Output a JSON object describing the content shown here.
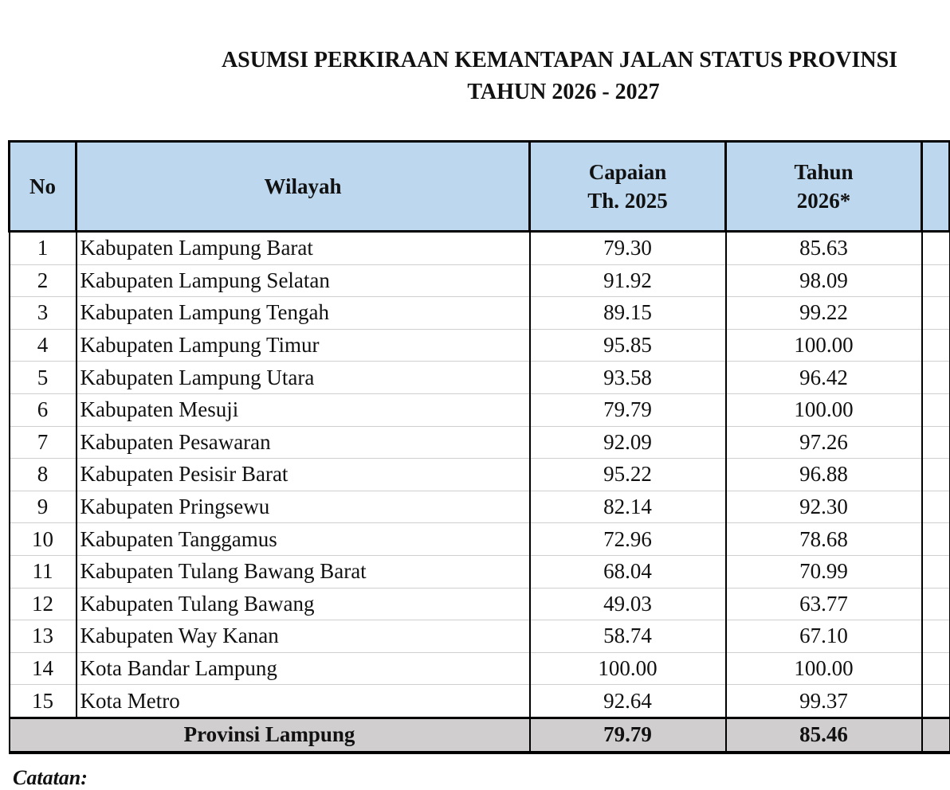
{
  "title": {
    "line1": "ASUMSI PERKIRAAN KEMANTAPAN JALAN STATUS PROVINSI",
    "line2": "TAHUN 2026 - 2027"
  },
  "table": {
    "headers": {
      "no": "No",
      "wilayah": "Wilayah",
      "capaian": "Capaian\nTh. 2025",
      "tahun2026": "Tahun\n2026*"
    },
    "rows": [
      {
        "no": "1",
        "wilayah": "Kabupaten Lampung Barat",
        "capaian": "79.30",
        "tahun2026": "85.63"
      },
      {
        "no": "2",
        "wilayah": "Kabupaten Lampung Selatan",
        "capaian": "91.92",
        "tahun2026": "98.09"
      },
      {
        "no": "3",
        "wilayah": "Kabupaten Lampung Tengah",
        "capaian": "89.15",
        "tahun2026": "99.22"
      },
      {
        "no": "4",
        "wilayah": "Kabupaten Lampung Timur",
        "capaian": "95.85",
        "tahun2026": "100.00"
      },
      {
        "no": "5",
        "wilayah": "Kabupaten Lampung Utara",
        "capaian": "93.58",
        "tahun2026": "96.42"
      },
      {
        "no": "6",
        "wilayah": "Kabupaten Mesuji",
        "capaian": "79.79",
        "tahun2026": "100.00"
      },
      {
        "no": "7",
        "wilayah": "Kabupaten Pesawaran",
        "capaian": "92.09",
        "tahun2026": "97.26"
      },
      {
        "no": "8",
        "wilayah": "Kabupaten Pesisir Barat",
        "capaian": "95.22",
        "tahun2026": "96.88"
      },
      {
        "no": "9",
        "wilayah": "Kabupaten Pringsewu",
        "capaian": "82.14",
        "tahun2026": "92.30"
      },
      {
        "no": "10",
        "wilayah": "Kabupaten Tanggamus",
        "capaian": "72.96",
        "tahun2026": "78.68"
      },
      {
        "no": "11",
        "wilayah": "Kabupaten Tulang Bawang Barat",
        "capaian": "68.04",
        "tahun2026": "70.99"
      },
      {
        "no": "12",
        "wilayah": "Kabupaten Tulang Bawang",
        "capaian": "49.03",
        "tahun2026": "63.77"
      },
      {
        "no": "13",
        "wilayah": "Kabupaten Way Kanan",
        "capaian": "58.74",
        "tahun2026": "67.10"
      },
      {
        "no": "14",
        "wilayah": "Kota Bandar Lampung",
        "capaian": "100.00",
        "tahun2026": "100.00"
      },
      {
        "no": "15",
        "wilayah": "Kota Metro",
        "capaian": "92.64",
        "tahun2026": "99.37"
      }
    ],
    "total": {
      "label": "Provinsi Lampung",
      "capaian": "79.79",
      "tahun2026": "85.46"
    }
  },
  "note": "Catatan:",
  "colors": {
    "header_bg": "#bdd7ee",
    "total_bg": "#d0cece"
  }
}
